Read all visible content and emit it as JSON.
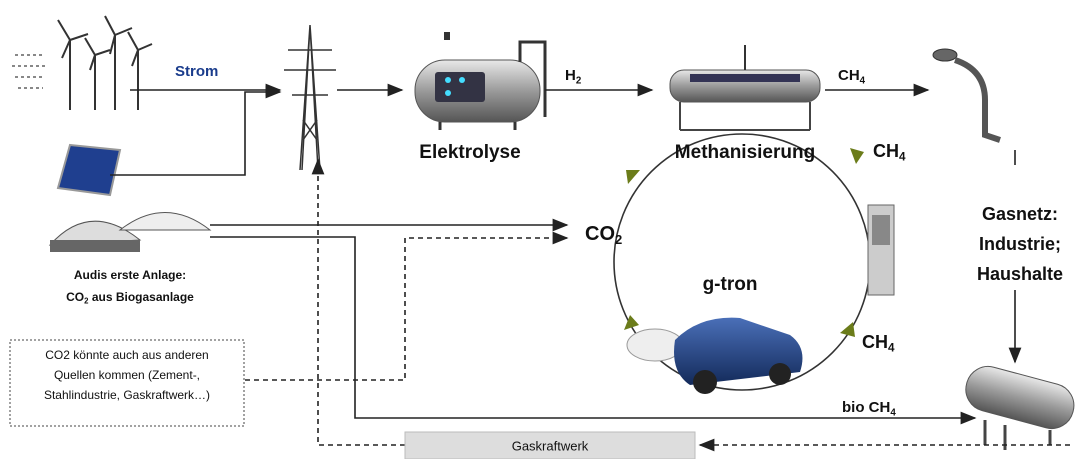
{
  "labels": {
    "strom": "Strom",
    "h2": {
      "base": "H",
      "sub": "2"
    },
    "ch4_top": {
      "base": "CH",
      "sub": "4"
    },
    "elektrolyse": "Elektrolyse",
    "methanisierung": "Methanisierung",
    "ch4_right": {
      "base": "CH",
      "sub": "4"
    },
    "gasnetz": [
      "Gasnetz:",
      "Industrie;",
      "Haushalte"
    ],
    "co2": {
      "base": "CO",
      "sub": "2"
    },
    "anlage_line1": "Audis erste Anlage:",
    "anlage_line2": {
      "base": "CO",
      "sub": "2",
      "rest": " aus Biogasanlage"
    },
    "g_tron": "g-tron",
    "ch4_bottom": {
      "base": "CH",
      "sub": "4"
    },
    "note": [
      "CO2 könnte auch aus anderen",
      "Quellen kommen (Zement-,",
      "Stahlindustrie, Gaskraftwerk…)"
    ],
    "bio_ch4": {
      "base": "bio CH",
      "sub": "4"
    },
    "gaskraftwerk": "Gaskraftwerk"
  }
}
